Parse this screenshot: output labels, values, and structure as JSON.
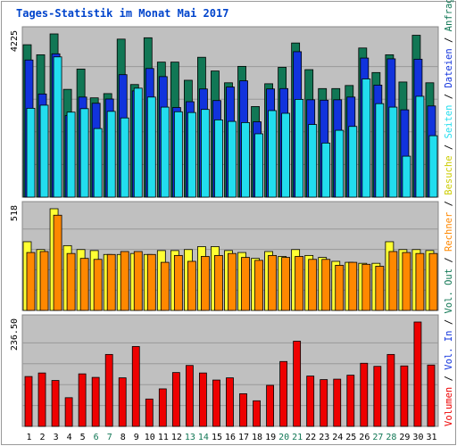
{
  "title": "Tages-Statistik im Monat Mai 2017",
  "colors": {
    "background": "#c0c0c0",
    "anfragen": "#117755",
    "dateien": "#1133dd",
    "seiten": "#22ddee",
    "besuche": "#ffff33",
    "rechner": "#ff8800",
    "volumen": "#ee0000",
    "weekend_label": "#117755",
    "label_default": "#000000"
  },
  "chart_data": [
    {
      "type": "bar",
      "panel": "top",
      "ytick_label": "4225",
      "ymax": 4225,
      "categories": [
        "1",
        "2",
        "3",
        "4",
        "5",
        "6",
        "7",
        "8",
        "9",
        "10",
        "11",
        "12",
        "13",
        "14",
        "15",
        "16",
        "17",
        "18",
        "19",
        "20",
        "21",
        "22",
        "23",
        "24",
        "25",
        "26",
        "27",
        "28",
        "29",
        "30",
        "31"
      ],
      "weekend_days": [
        6,
        7,
        13,
        14,
        20,
        21,
        27,
        28
      ],
      "series": [
        {
          "name": "Anfragen",
          "color": "#117755",
          "values": [
            3945,
            3685,
            4225,
            2790,
            3315,
            2570,
            2680,
            4090,
            2915,
            4125,
            3495,
            3495,
            3025,
            3620,
            3265,
            2960,
            3385,
            2345,
            2935,
            3360,
            3990,
            3300,
            2810,
            2810,
            2890,
            3860,
            3225,
            3685,
            2980,
            4190,
            2960
          ]
        },
        {
          "name": "Dateien",
          "color": "#1133dd",
          "values": [
            3550,
            2670,
            3710,
            2110,
            2590,
            2430,
            2540,
            3170,
            2750,
            3330,
            3120,
            2320,
            2470,
            2800,
            2500,
            2850,
            3010,
            1950,
            2800,
            2810,
            3765,
            2520,
            2510,
            2520,
            2590,
            3600,
            2900,
            3580,
            2260,
            3570,
            2360
          ]
        },
        {
          "name": "Seiten",
          "color": "#22ddee",
          "values": [
            2300,
            2380,
            3630,
            2200,
            2290,
            1775,
            2220,
            2050,
            2820,
            2590,
            2330,
            2210,
            2190,
            2270,
            2000,
            1960,
            1930,
            1640,
            2240,
            2170,
            2530,
            1880,
            1400,
            1730,
            1830,
            3060,
            2420,
            2330,
            1060,
            2610,
            1590
          ]
        }
      ],
      "legend_labels": [
        "Anfragen",
        "/",
        "Dateien",
        "/",
        "Seiten",
        "/",
        "Besuche"
      ]
    },
    {
      "type": "bar",
      "panel": "middle",
      "ytick_label": "518",
      "ymax": 518,
      "categories": [
        "1",
        "2",
        "3",
        "4",
        "5",
        "6",
        "7",
        "8",
        "9",
        "10",
        "11",
        "12",
        "13",
        "14",
        "15",
        "16",
        "17",
        "18",
        "19",
        "20",
        "21",
        "22",
        "23",
        "24",
        "25",
        "26",
        "27",
        "28",
        "29",
        "30",
        "31"
      ],
      "series": [
        {
          "name": "Besuche",
          "color": "#ffff33",
          "values": [
            350,
            310,
            518,
            330,
            310,
            305,
            285,
            285,
            290,
            285,
            305,
            305,
            310,
            325,
            325,
            305,
            295,
            265,
            300,
            275,
            310,
            280,
            270,
            250,
            245,
            240,
            240,
            350,
            310,
            310,
            305
          ]
        },
        {
          "name": "Rechner",
          "color": "#ff8800",
          "values": [
            295,
            300,
            485,
            290,
            265,
            260,
            285,
            300,
            300,
            285,
            245,
            280,
            250,
            275,
            280,
            290,
            270,
            255,
            280,
            270,
            275,
            260,
            260,
            230,
            245,
            235,
            225,
            300,
            295,
            290,
            290
          ]
        }
      ],
      "legend_labels": [
        "Rechner",
        "/",
        "Vol. Out",
        "/"
      ]
    },
    {
      "type": "bar",
      "panel": "bottom",
      "ytick_label": "236.50",
      "ymax": 236.5,
      "categories": [
        "1",
        "2",
        "3",
        "4",
        "5",
        "6",
        "7",
        "8",
        "9",
        "10",
        "11",
        "12",
        "13",
        "14",
        "15",
        "16",
        "17",
        "18",
        "19",
        "20",
        "21",
        "22",
        "23",
        "24",
        "25",
        "26",
        "27",
        "28",
        "29",
        "30",
        "31"
      ],
      "series": [
        {
          "name": "Volumen",
          "color": "#ee0000",
          "values": [
            113,
            121,
            104,
            65,
            119,
            111,
            163,
            110,
            181,
            62,
            85,
            122,
            138,
            121,
            105,
            110,
            74,
            58,
            93,
            147,
            193,
            114,
            106,
            107,
            116,
            143,
            136,
            163,
            137,
            236.5,
            139
          ]
        }
      ],
      "legend_labels": [
        "Volumen",
        "/",
        "Vol. In",
        "/"
      ]
    }
  ]
}
